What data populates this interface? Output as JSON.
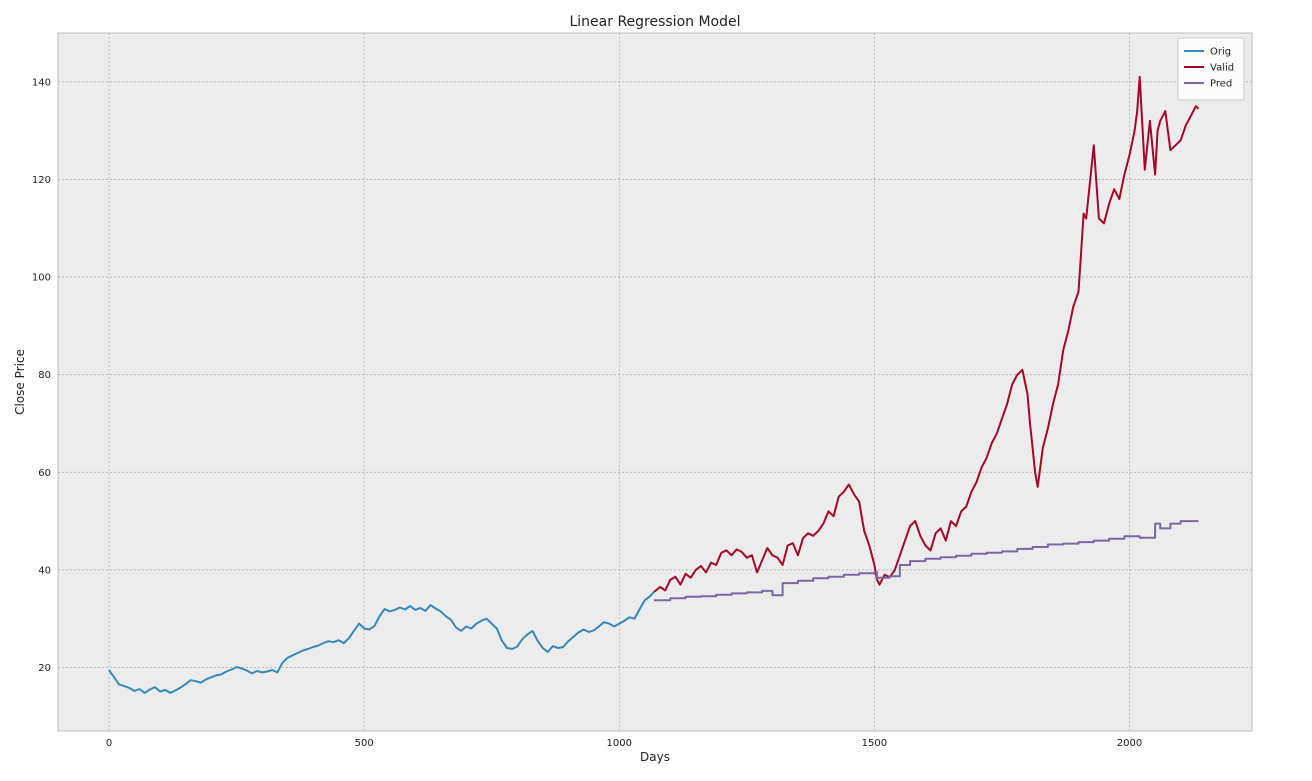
{
  "chart_data": {
    "type": "line",
    "title": "Linear Regression Model",
    "xlabel": "Days",
    "ylabel": "Close Price",
    "xlim": [
      -100,
      2240
    ],
    "ylim": [
      7,
      150
    ],
    "xticks": [
      0,
      500,
      1000,
      1500,
      2000
    ],
    "xtick_labels": [
      "0",
      "500",
      "1000",
      "1500",
      "2000"
    ],
    "yticks": [
      20,
      40,
      60,
      80,
      100,
      120,
      140
    ],
    "ytick_labels": [
      "20",
      "40",
      "60",
      "80",
      "100",
      "120",
      "140"
    ],
    "grid": true,
    "legend_position": "top-right",
    "background": "#ececec",
    "series": [
      {
        "name": "Orig",
        "color": "#348abd",
        "x": [
          0,
          10,
          20,
          30,
          40,
          50,
          60,
          70,
          80,
          90,
          100,
          110,
          120,
          130,
          140,
          150,
          160,
          170,
          180,
          190,
          200,
          210,
          220,
          230,
          240,
          250,
          260,
          270,
          280,
          290,
          300,
          310,
          320,
          330,
          340,
          350,
          360,
          370,
          380,
          390,
          400,
          410,
          420,
          430,
          440,
          450,
          460,
          470,
          480,
          490,
          500,
          510,
          520,
          530,
          540,
          550,
          560,
          570,
          580,
          590,
          600,
          610,
          620,
          630,
          640,
          650,
          660,
          670,
          680,
          690,
          700,
          710,
          720,
          730,
          740,
          750,
          760,
          770,
          780,
          790,
          800,
          810,
          820,
          830,
          840,
          850,
          860,
          870,
          880,
          890,
          900,
          910,
          920,
          930,
          940,
          950,
          960,
          970,
          980,
          990,
          1000,
          1010,
          1020,
          1030,
          1040,
          1050,
          1060,
          1068
        ],
        "values": [
          19.5,
          18.0,
          16.5,
          16.2,
          15.8,
          15.2,
          15.6,
          14.8,
          15.5,
          16.0,
          15.1,
          15.4,
          14.8,
          15.3,
          15.9,
          16.6,
          17.4,
          17.2,
          16.9,
          17.6,
          18.0,
          18.4,
          18.6,
          19.2,
          19.6,
          20.1,
          19.8,
          19.4,
          18.8,
          19.3,
          19.0,
          19.2,
          19.5,
          19.0,
          21.0,
          22.0,
          22.5,
          23.0,
          23.5,
          23.8,
          24.2,
          24.5,
          25.0,
          25.4,
          25.2,
          25.6,
          25.0,
          26.0,
          27.5,
          29.0,
          28.0,
          27.8,
          28.5,
          30.5,
          32.0,
          31.5,
          31.8,
          32.3,
          31.9,
          32.6,
          31.8,
          32.2,
          31.6,
          32.8,
          32.1,
          31.5,
          30.5,
          29.8,
          28.2,
          27.5,
          28.4,
          28.0,
          29.0,
          29.6,
          30.0,
          29.0,
          28.0,
          25.5,
          24.0,
          23.8,
          24.3,
          25.8,
          26.8,
          27.5,
          25.5,
          24.0,
          23.2,
          24.4,
          24.0,
          24.2,
          25.4,
          26.3,
          27.2,
          27.8,
          27.3,
          27.6,
          28.4,
          29.3,
          29.0,
          28.4,
          29.0,
          29.6,
          30.3,
          30.0,
          32.0,
          33.8,
          34.6,
          35.5
        ]
      },
      {
        "name": "Valid",
        "color": "#a60628",
        "x": [
          1068,
          1080,
          1090,
          1100,
          1110,
          1120,
          1130,
          1140,
          1150,
          1160,
          1170,
          1180,
          1190,
          1200,
          1210,
          1220,
          1230,
          1240,
          1250,
          1260,
          1270,
          1280,
          1290,
          1300,
          1310,
          1320,
          1330,
          1340,
          1350,
          1360,
          1370,
          1380,
          1390,
          1400,
          1410,
          1420,
          1430,
          1440,
          1450,
          1460,
          1470,
          1480,
          1490,
          1500,
          1505,
          1510,
          1520,
          1530,
          1540,
          1550,
          1560,
          1570,
          1580,
          1590,
          1600,
          1610,
          1620,
          1630,
          1640,
          1650,
          1660,
          1670,
          1680,
          1690,
          1700,
          1710,
          1720,
          1730,
          1740,
          1750,
          1760,
          1770,
          1780,
          1790,
          1800,
          1805,
          1810,
          1815,
          1820,
          1830,
          1840,
          1850,
          1860,
          1870,
          1880,
          1890,
          1900,
          1905,
          1910,
          1915,
          1920,
          1930,
          1940,
          1950,
          1960,
          1970,
          1980,
          1990,
          2000,
          2010,
          2015,
          2020,
          2030,
          2040,
          2050,
          2055,
          2060,
          2070,
          2080,
          2090,
          2100,
          2110,
          2120,
          2130,
          2135
        ],
        "values": [
          35.5,
          36.5,
          35.8,
          38.0,
          38.6,
          37.0,
          39.2,
          38.4,
          40.0,
          40.8,
          39.5,
          41.5,
          41.0,
          43.5,
          44.0,
          43.0,
          44.2,
          43.7,
          42.5,
          43.0,
          39.5,
          42.0,
          44.5,
          43.0,
          42.5,
          41.0,
          45.0,
          45.5,
          43.0,
          46.5,
          47.5,
          47.0,
          48.0,
          49.5,
          52.0,
          51.0,
          55.0,
          56.0,
          57.5,
          55.5,
          54.0,
          48.0,
          45.0,
          41.0,
          38.0,
          37.0,
          39.0,
          38.5,
          40.0,
          43.0,
          46.0,
          49.0,
          50.0,
          47.0,
          45.0,
          44.0,
          47.5,
          48.5,
          46.0,
          50.0,
          49.0,
          52.0,
          53.0,
          56.0,
          58.0,
          61.0,
          63.0,
          66.0,
          68.0,
          71.0,
          74.0,
          78.0,
          80.0,
          81.0,
          76.0,
          70.0,
          65.0,
          60.0,
          57.0,
          65.0,
          69.0,
          74.0,
          78.0,
          85.0,
          89.0,
          94.0,
          97.0,
          105.0,
          113.0,
          112.0,
          117.0,
          127.0,
          112.0,
          111.0,
          115.0,
          118.0,
          116.0,
          121.0,
          125.0,
          130.0,
          134.0,
          141.0,
          122.0,
          132.0,
          121.0,
          130.0,
          132.0,
          134.0,
          126.0,
          127.0,
          128.0,
          131.0,
          133.0,
          135.0,
          134.5
        ]
      },
      {
        "name": "Pred",
        "color": "#7a68a6",
        "x": [
          1068,
          1100,
          1100,
          1130,
          1130,
          1160,
          1160,
          1190,
          1190,
          1220,
          1220,
          1250,
          1250,
          1280,
          1280,
          1300,
          1300,
          1320,
          1320,
          1350,
          1350,
          1380,
          1380,
          1410,
          1410,
          1440,
          1440,
          1470,
          1470,
          1500,
          1500,
          1505,
          1505,
          1530,
          1530,
          1550,
          1550,
          1570,
          1570,
          1600,
          1600,
          1630,
          1630,
          1660,
          1660,
          1690,
          1690,
          1720,
          1720,
          1750,
          1750,
          1780,
          1780,
          1810,
          1810,
          1840,
          1840,
          1870,
          1870,
          1900,
          1900,
          1930,
          1930,
          1960,
          1960,
          1990,
          1990,
          2020,
          2020,
          2050,
          2050,
          2060,
          2060,
          2080,
          2080,
          2100,
          2100,
          2135
        ],
        "values": [
          33.8,
          33.8,
          34.2,
          34.2,
          34.5,
          34.5,
          34.6,
          34.6,
          34.9,
          34.9,
          35.2,
          35.2,
          35.4,
          35.4,
          35.7,
          35.7,
          34.8,
          34.8,
          37.3,
          37.3,
          37.8,
          37.8,
          38.3,
          38.3,
          38.6,
          38.6,
          39.0,
          39.0,
          39.3,
          39.3,
          39.6,
          39.6,
          38.4,
          38.4,
          38.7,
          38.7,
          41.0,
          41.0,
          41.8,
          41.8,
          42.3,
          42.3,
          42.6,
          42.6,
          42.9,
          42.9,
          43.3,
          43.3,
          43.5,
          43.5,
          43.8,
          43.8,
          44.3,
          44.3,
          44.7,
          44.7,
          45.2,
          45.2,
          45.4,
          45.4,
          45.7,
          45.7,
          46.0,
          46.0,
          46.4,
          46.4,
          46.9,
          46.9,
          46.6,
          46.6,
          49.5,
          49.5,
          48.5,
          48.5,
          49.5,
          49.5,
          50.0,
          50.0
        ]
      }
    ]
  }
}
